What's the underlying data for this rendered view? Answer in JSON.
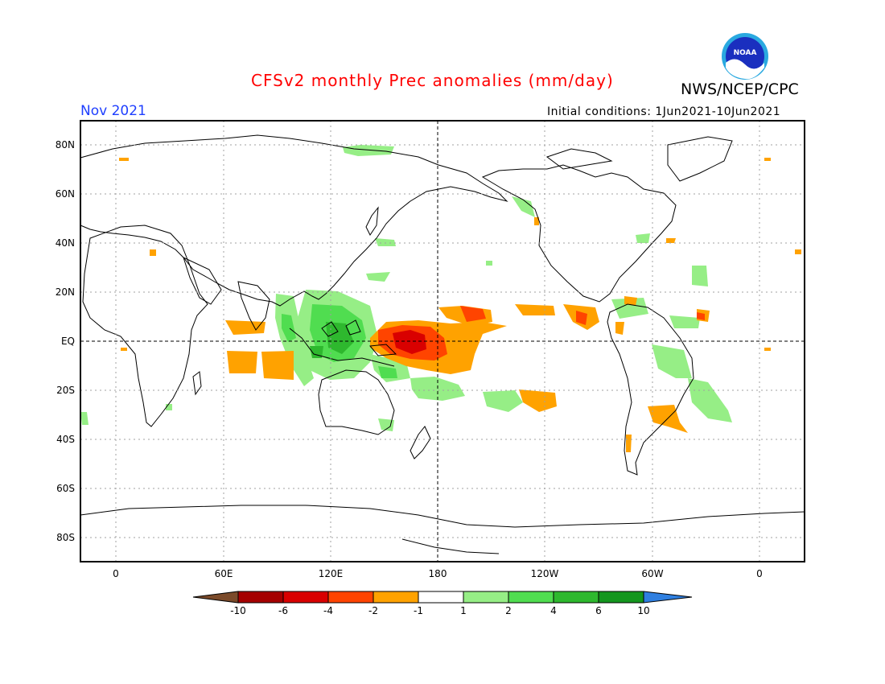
{
  "title": "CFSv2 monthly Prec anomalies (mm/day)",
  "agency": "NWS/NCEP/CPC",
  "logo_text": "NOAA",
  "month_label": "Nov 2021",
  "initial_conditions": "Initial conditions: 1Jun2021-10Jun2021",
  "lat_labels": [
    "80N",
    "60N",
    "40N",
    "20N",
    "EQ",
    "20S",
    "40S",
    "60S",
    "80S"
  ],
  "lon_labels": [
    "0",
    "60E",
    "120E",
    "180",
    "120W",
    "60W",
    "0"
  ],
  "colorbar": {
    "ticks": [
      "-10",
      "-6",
      "-4",
      "-2",
      "-1",
      "1",
      "2",
      "4",
      "6",
      "10"
    ],
    "colors": [
      "#7b4a2a",
      "#a50000",
      "#d90000",
      "#ff4400",
      "#ffa200",
      "#ffffff",
      "#96ee86",
      "#50dd50",
      "#2eb82e",
      "#14961e",
      "#2f7fe0"
    ]
  },
  "anomaly_colors": {
    "dry_-1": "#ffa200",
    "dry_-2": "#ff4400",
    "dry_-4": "#d90000",
    "wet_1": "#96ee86",
    "wet_2": "#50dd50",
    "wet_4": "#2eb82e"
  }
}
